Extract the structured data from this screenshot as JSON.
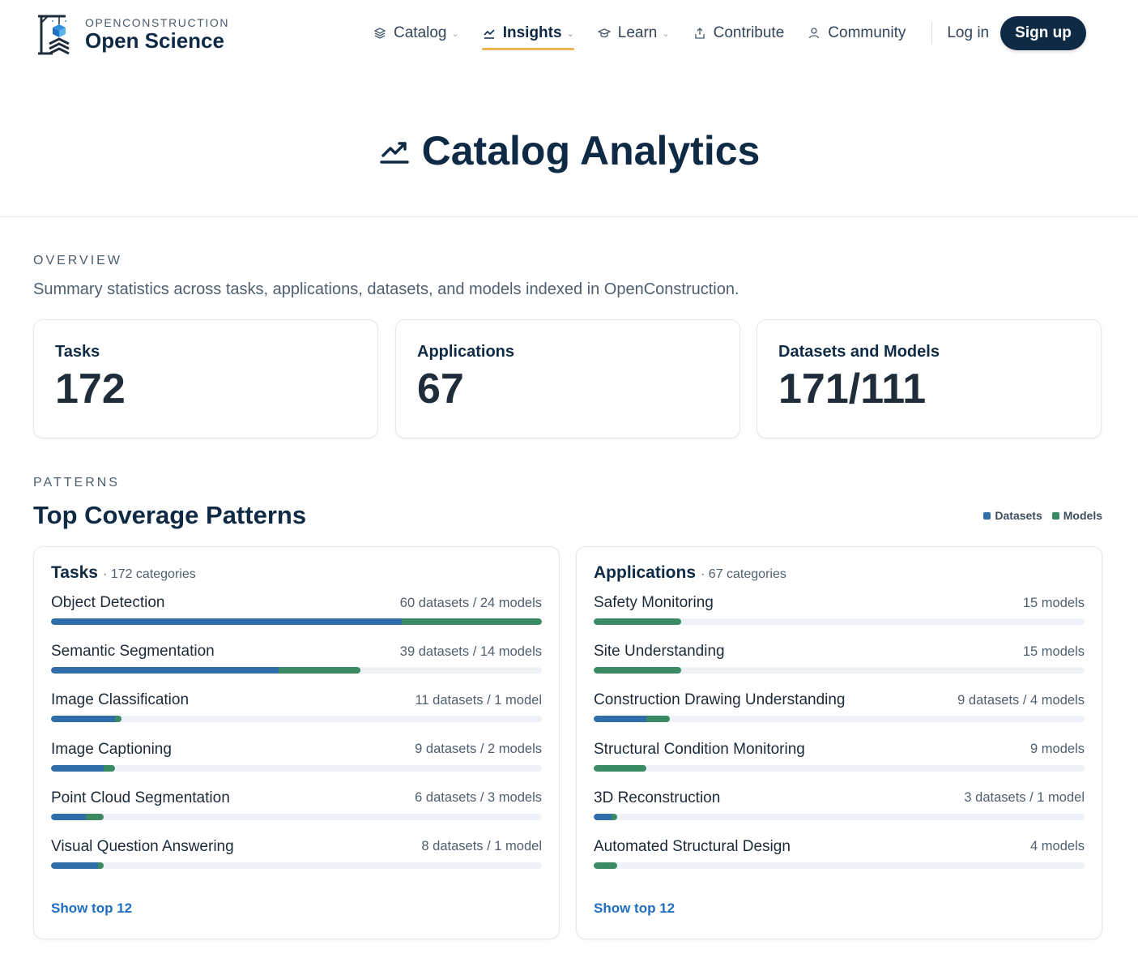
{
  "brand": {
    "sub": "OPENCONSTRUCTION",
    "name": "Open Science"
  },
  "nav": {
    "items": [
      {
        "label": "Catalog",
        "icon": "layers-icon",
        "dropdown": true,
        "active": false
      },
      {
        "label": "Insights",
        "icon": "trend-icon",
        "dropdown": true,
        "active": true
      },
      {
        "label": "Learn",
        "icon": "graduation-cap-icon",
        "dropdown": true,
        "active": false
      },
      {
        "label": "Contribute",
        "icon": "upload-icon",
        "dropdown": false,
        "active": false
      },
      {
        "label": "Community",
        "icon": "user-icon",
        "dropdown": false,
        "active": false
      }
    ],
    "login": "Log in",
    "signup": "Sign up"
  },
  "hero": {
    "title": "Catalog Analytics",
    "icon": "trend-icon"
  },
  "overview": {
    "eyebrow": "OVERVIEW",
    "description": "Summary statistics across tasks, applications, datasets, and models indexed in OpenConstruction.",
    "stats": [
      {
        "label": "Tasks",
        "value": "172"
      },
      {
        "label": "Applications",
        "value": "67"
      },
      {
        "label": "Datasets and Models",
        "value": "171/111"
      }
    ]
  },
  "patterns": {
    "eyebrow": "PATTERNS",
    "title": "Top Coverage Patterns",
    "legend": [
      {
        "label": "Datasets",
        "color": "#2f6ea8"
      },
      {
        "label": "Models",
        "color": "#3a8a63"
      }
    ],
    "scale_max": 84,
    "colors": {
      "datasets": "#2f6ea8",
      "models": "#3a8a63"
    },
    "panels": [
      {
        "title": "Tasks",
        "count": "· 172 categories",
        "show_top": "Show top 12",
        "rows": [
          {
            "name": "Object Detection",
            "count": "60 datasets / 24 models",
            "datasets": 60,
            "models": 24
          },
          {
            "name": "Semantic Segmentation",
            "count": "39 datasets / 14 models",
            "datasets": 39,
            "models": 14
          },
          {
            "name": "Image Classification",
            "count": "11 datasets / 1 model",
            "datasets": 11,
            "models": 1
          },
          {
            "name": "Image Captioning",
            "count": "9 datasets / 2 models",
            "datasets": 9,
            "models": 2
          },
          {
            "name": "Point Cloud Segmentation",
            "count": "6 datasets / 3 models",
            "datasets": 6,
            "models": 3
          },
          {
            "name": "Visual Question Answering",
            "count": "8 datasets / 1 model",
            "datasets": 8,
            "models": 1
          }
        ]
      },
      {
        "title": "Applications",
        "count": "· 67 categories",
        "show_top": "Show top 12",
        "rows": [
          {
            "name": "Safety Monitoring",
            "count": "15 models",
            "datasets": 0,
            "models": 15
          },
          {
            "name": "Site Understanding",
            "count": "15 models",
            "datasets": 0,
            "models": 15
          },
          {
            "name": "Construction Drawing Understanding",
            "count": "9 datasets / 4 models",
            "datasets": 9,
            "models": 4
          },
          {
            "name": "Structural Condition Monitoring",
            "count": "9 models",
            "datasets": 0,
            "models": 9
          },
          {
            "name": "3D Reconstruction",
            "count": "3 datasets / 1 model",
            "datasets": 3,
            "models": 1
          },
          {
            "name": "Automated Structural Design",
            "count": "4 models",
            "datasets": 0,
            "models": 4
          }
        ]
      }
    ]
  }
}
